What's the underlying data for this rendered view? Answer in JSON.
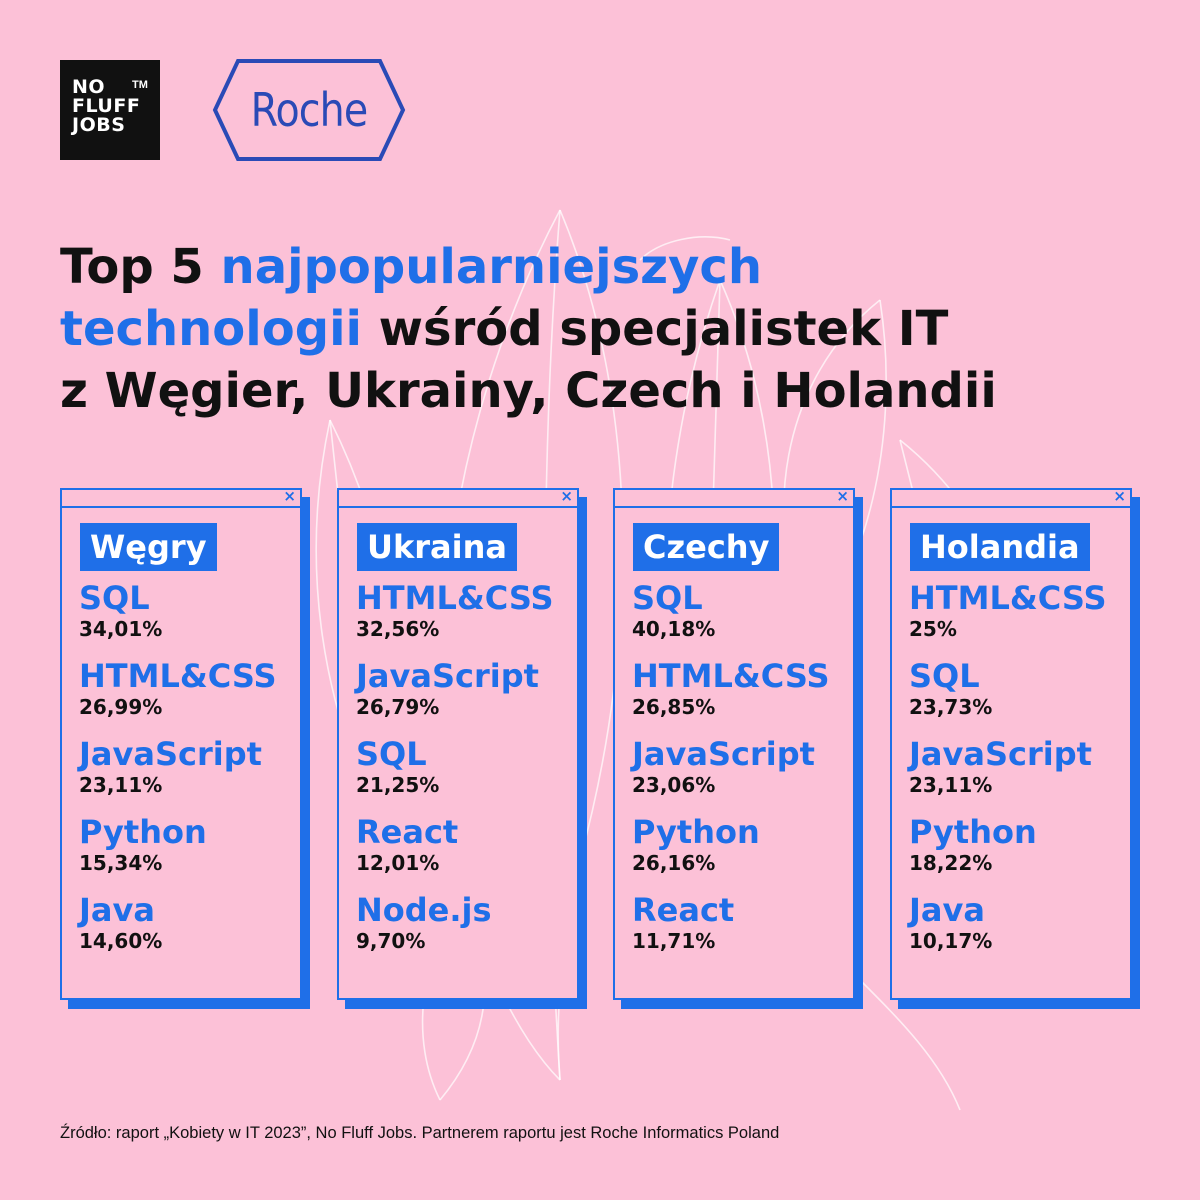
{
  "logos": {
    "nofluff": [
      "NO",
      "FLUFF",
      "JOBS"
    ],
    "nofluff_tm": "TM",
    "roche": "Roche"
  },
  "headline": {
    "part1": "Top 5 ",
    "part2_highlight": "najpopularniejszych",
    "part3_highlight": "technologii",
    "part4": " wśród specjalistek IT",
    "part5": "z Węgier, Ukrainy, Czech i Holandii"
  },
  "close_glyph": "×",
  "colors": {
    "background": "#fcc1d7",
    "accent": "#1f6fe8",
    "text": "#111111"
  },
  "countries": [
    {
      "name": "Węgry",
      "items": [
        {
          "tech": "SQL",
          "pct": "34,01%"
        },
        {
          "tech": "HTML&CSS",
          "pct": "26,99%"
        },
        {
          "tech": "JavaScript",
          "pct": "23,11%"
        },
        {
          "tech": "Python",
          "pct": "15,34%"
        },
        {
          "tech": "Java",
          "pct": "14,60%"
        }
      ]
    },
    {
      "name": "Ukraina",
      "items": [
        {
          "tech": "HTML&CSS",
          "pct": "32,56%"
        },
        {
          "tech": "JavaScript",
          "pct": "26,79%"
        },
        {
          "tech": "SQL",
          "pct": "21,25%"
        },
        {
          "tech": "React",
          "pct": "12,01%"
        },
        {
          "tech": "Node.js",
          "pct": "9,70%"
        }
      ]
    },
    {
      "name": "Czechy",
      "items": [
        {
          "tech": "SQL",
          "pct": "40,18%"
        },
        {
          "tech": "HTML&CSS",
          "pct": "26,85%"
        },
        {
          "tech": "JavaScript",
          "pct": "23,06%"
        },
        {
          "tech": "Python",
          "pct": "26,16%"
        },
        {
          "tech": "React",
          "pct": "11,71%"
        }
      ]
    },
    {
      "name": "Holandia",
      "items": [
        {
          "tech": "HTML&CSS",
          "pct": "25%"
        },
        {
          "tech": "SQL",
          "pct": "23,73%"
        },
        {
          "tech": "JavaScript",
          "pct": "23,11%"
        },
        {
          "tech": "Python",
          "pct": "18,22%"
        },
        {
          "tech": "Java",
          "pct": "10,17%"
        }
      ]
    }
  ],
  "source": "Źródło: raport „Kobiety w IT 2023”, No Fluff Jobs. Partnerem raportu jest Roche Informatics Poland"
}
